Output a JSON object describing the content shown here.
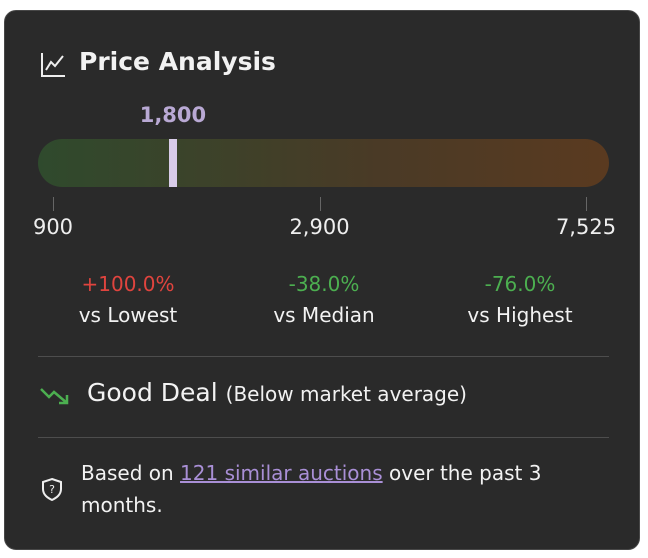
{
  "header": {
    "title": "Price Analysis"
  },
  "gauge": {
    "value": 1800,
    "value_label": "1,800",
    "range": [
      900,
      7525
    ],
    "ticks": [
      900,
      {
        "value": 2900,
        "label": "2,900"
      },
      {
        "value": 7525,
        "label": "7,525"
      }
    ],
    "marker_color": "#d8cce8"
  },
  "comparisons": [
    {
      "change": "+100.0%",
      "label": "vs Lowest",
      "color": "#e0443e"
    },
    {
      "change": "-38.0%",
      "label": "vs Median",
      "color": "#4caf50"
    },
    {
      "change": "-76.0%",
      "label": "vs Highest",
      "color": "#4caf50"
    }
  ],
  "verdict": {
    "title": "Good Deal",
    "note": "(Below market average)"
  },
  "footer": {
    "before": "Based on ",
    "link": "121 similar auctions",
    "after": " over the past 3 months."
  }
}
